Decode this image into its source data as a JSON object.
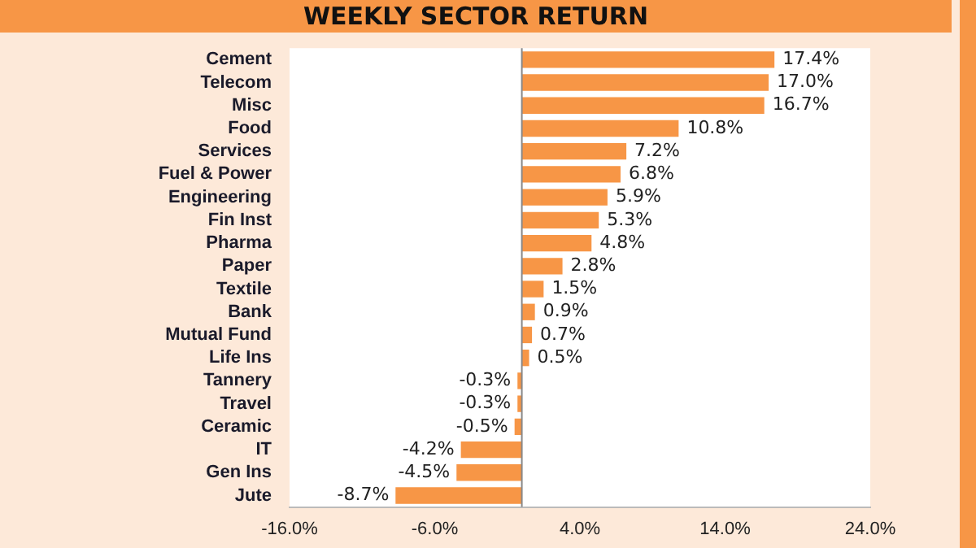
{
  "chart_data": {
    "type": "bar",
    "orientation": "horizontal",
    "title": "WEEKLY SECTOR RETURN",
    "categories": [
      "Cement",
      "Telecom",
      "Misc",
      "Food",
      "Services",
      "Fuel & Power",
      "Engineering",
      "Fin Inst",
      "Pharma",
      "Paper",
      "Textile",
      "Bank",
      "Mutual Fund",
      "Life Ins",
      "Tannery",
      "Travel",
      "Ceramic",
      "IT",
      "Gen Ins",
      "Jute"
    ],
    "values": [
      17.4,
      17.0,
      16.7,
      10.8,
      7.2,
      6.8,
      5.9,
      5.3,
      4.8,
      2.8,
      1.5,
      0.9,
      0.7,
      0.5,
      -0.3,
      -0.3,
      -0.5,
      -4.2,
      -4.5,
      -8.7
    ],
    "value_labels": [
      "17.4%",
      "17.0%",
      "16.7%",
      "10.8%",
      "7.2%",
      "6.8%",
      "5.9%",
      "5.3%",
      "4.8%",
      "2.8%",
      "1.5%",
      "0.9%",
      "0.7%",
      "0.5%",
      "-0.3%",
      "-0.3%",
      "-0.5%",
      "-4.2%",
      "-4.5%",
      "-8.7%"
    ],
    "color": "#f79646",
    "xlim": [
      -16,
      24
    ],
    "xticks": [
      {
        "value": -16,
        "label": "-16.0%"
      },
      {
        "value": -6,
        "label": "-6.0%"
      },
      {
        "value": 4,
        "label": "4.0%"
      },
      {
        "value": 14,
        "label": "14.0%"
      },
      {
        "value": 24,
        "label": "24.0%"
      }
    ],
    "grid": false,
    "legend": false
  }
}
